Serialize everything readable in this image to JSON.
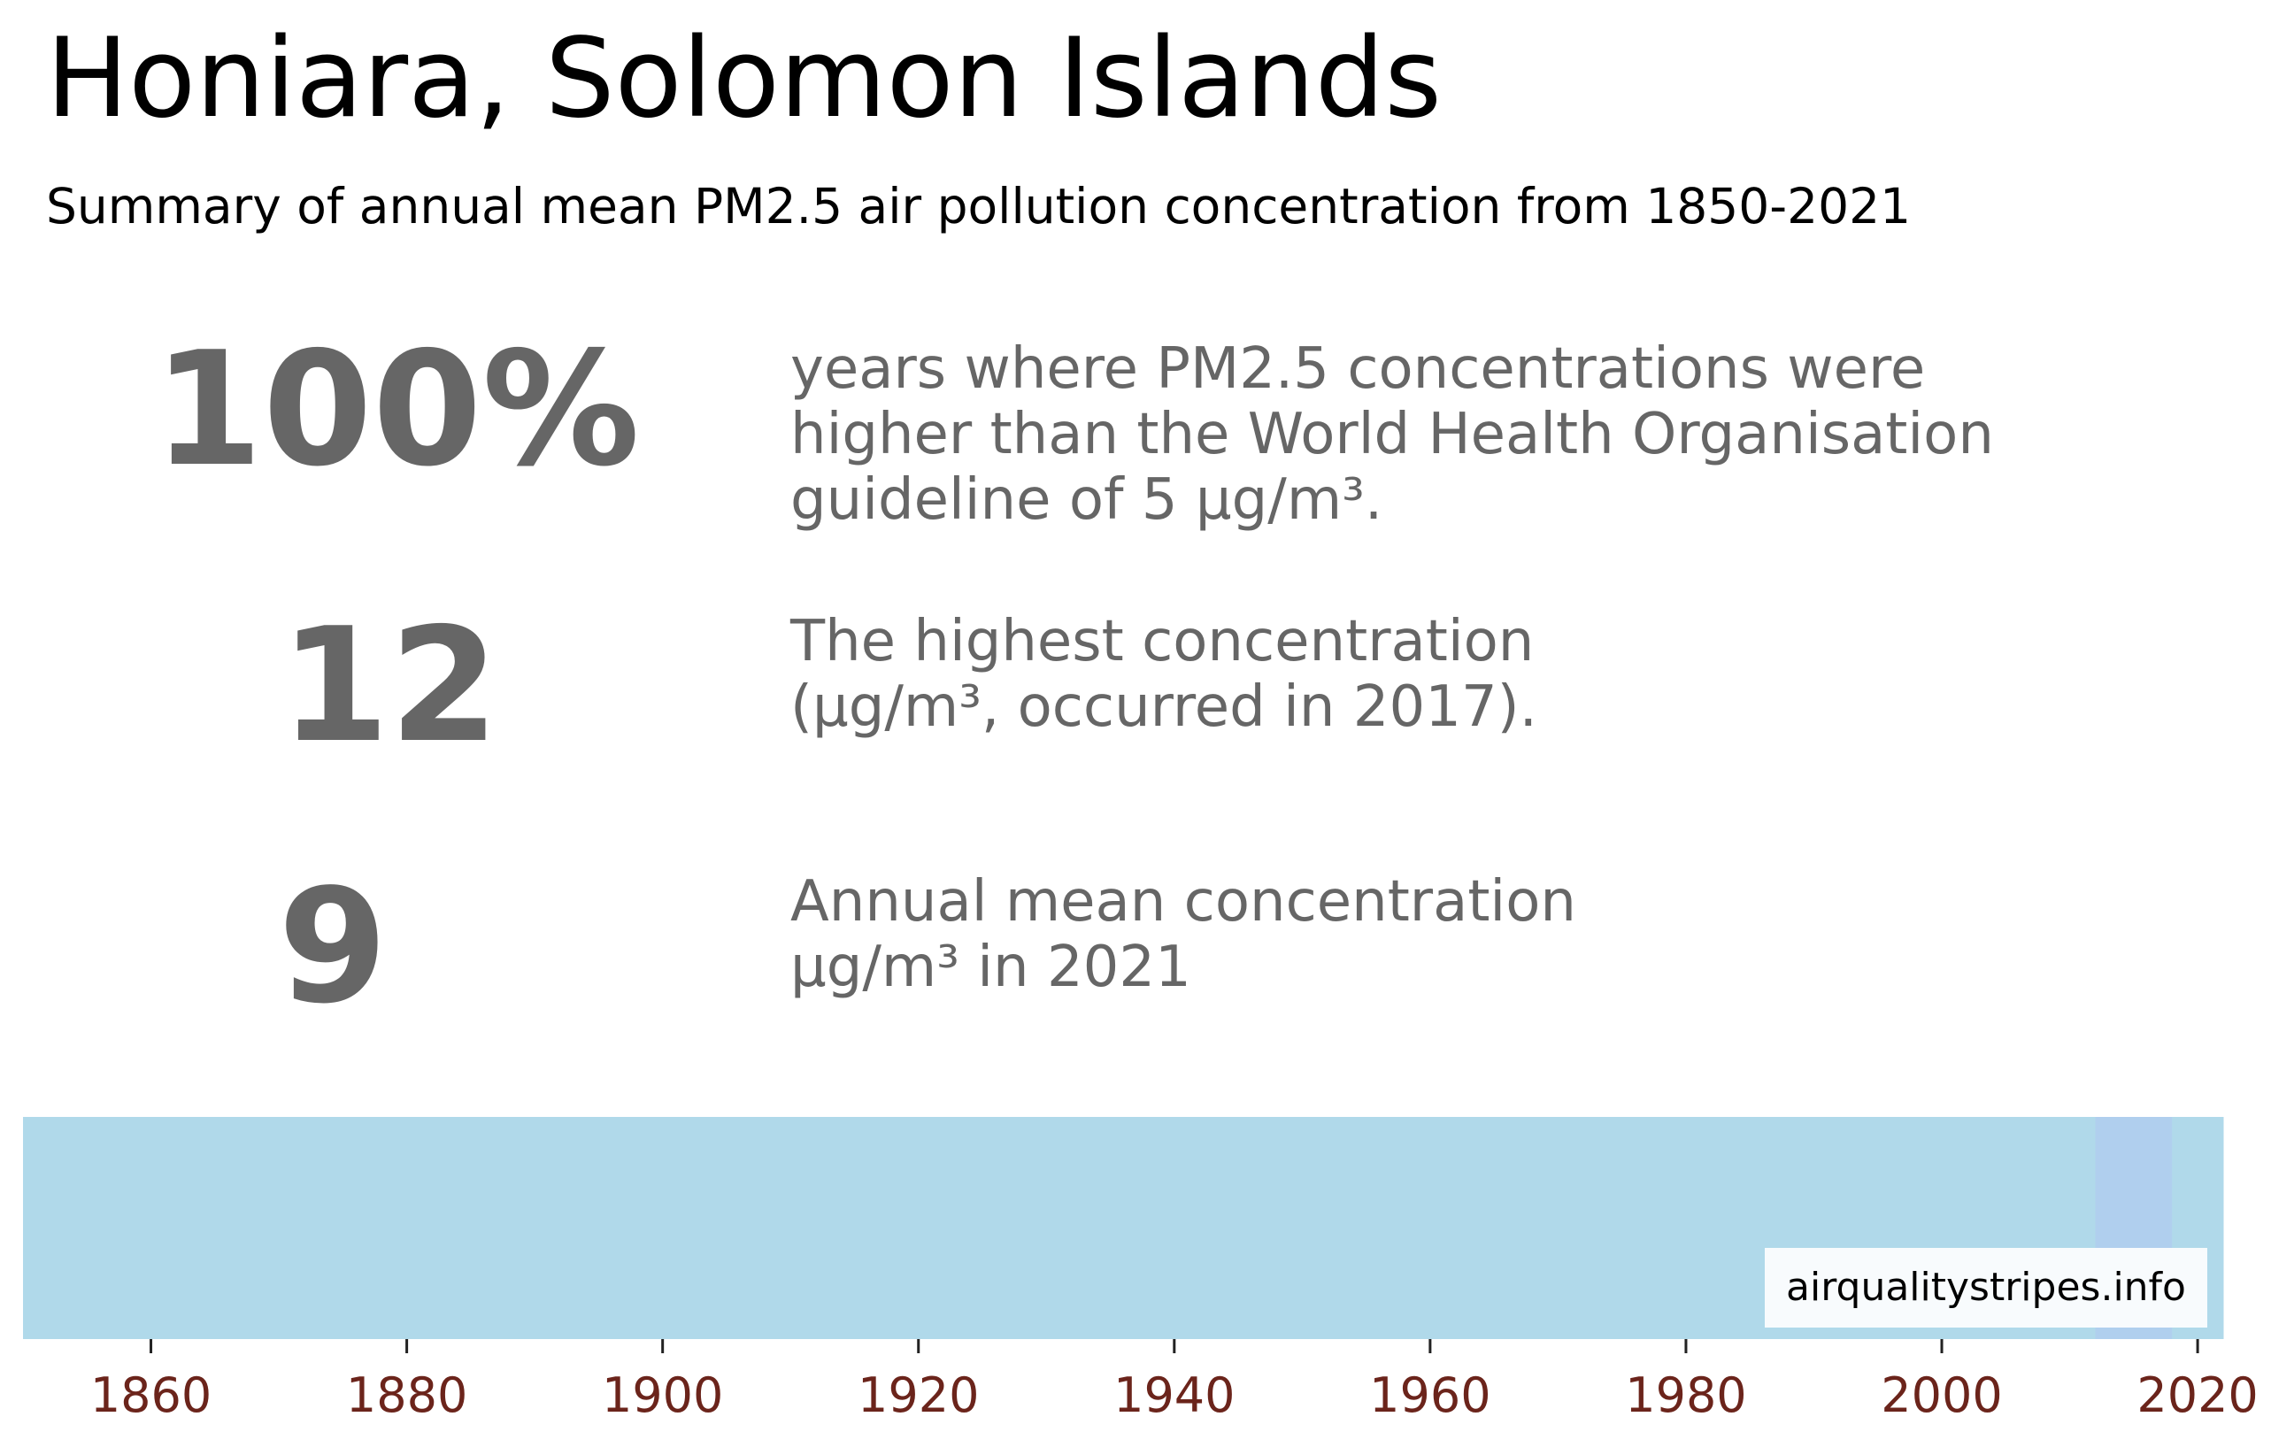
{
  "header": {
    "title": "Honiara, Solomon Islands",
    "subtitle": "Summary of annual mean PM2.5 air pollution concentration from 1850-2021"
  },
  "stats": [
    {
      "value": "100%",
      "text": "years where PM2.5 concentrations were\nhigher than the World Health Organisation\nguideline of 5 µg/m³."
    },
    {
      "value": "12",
      "text": "The highest concentration\n(µg/m³, occurred in 2017)."
    },
    {
      "value": "9",
      "text": "Annual mean concentration\nµg/m³ in 2021"
    }
  ],
  "watermark": "airqualitystripes.info",
  "colors": {
    "stat_text": "#666666",
    "tick_label": "#6b241b",
    "stripe_base": "#b0d9ea",
    "stripe_high": "#b0cfee"
  },
  "chart_data": {
    "type": "heatmap",
    "title": "",
    "xlabel": "",
    "ylabel": "",
    "xlim": [
      1850,
      2021
    ],
    "x_ticks": [
      1860,
      1880,
      1900,
      1920,
      1940,
      1960,
      1980,
      2000,
      2020
    ],
    "segments": [
      {
        "from": 1850,
        "to": 2012,
        "color": "#b0d9ea"
      },
      {
        "from": 2012,
        "to": 2018,
        "color": "#b0cfee"
      },
      {
        "from": 2018,
        "to": 2021,
        "color": "#b0d9ea"
      }
    ],
    "grid": false
  }
}
